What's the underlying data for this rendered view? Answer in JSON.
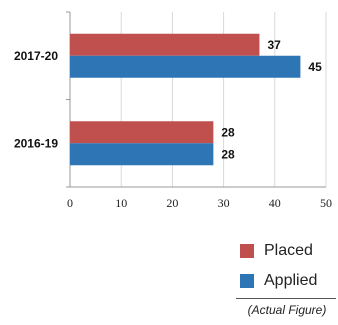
{
  "chart_data": {
    "type": "bar",
    "orientation": "horizontal",
    "categories": [
      "2017-20",
      "2016-19"
    ],
    "series": [
      {
        "name": "Placed",
        "values": [
          37,
          28
        ],
        "color": "#c0504d"
      },
      {
        "name": "Applied",
        "values": [
          45,
          28
        ],
        "color": "#2e75b6"
      }
    ],
    "xlim": [
      0,
      50
    ],
    "xticks": [
      "0",
      "10",
      "20",
      "30",
      "40",
      "50"
    ],
    "grid": true,
    "legend_position": "bottom-right"
  },
  "note": "(Actual Figure)"
}
